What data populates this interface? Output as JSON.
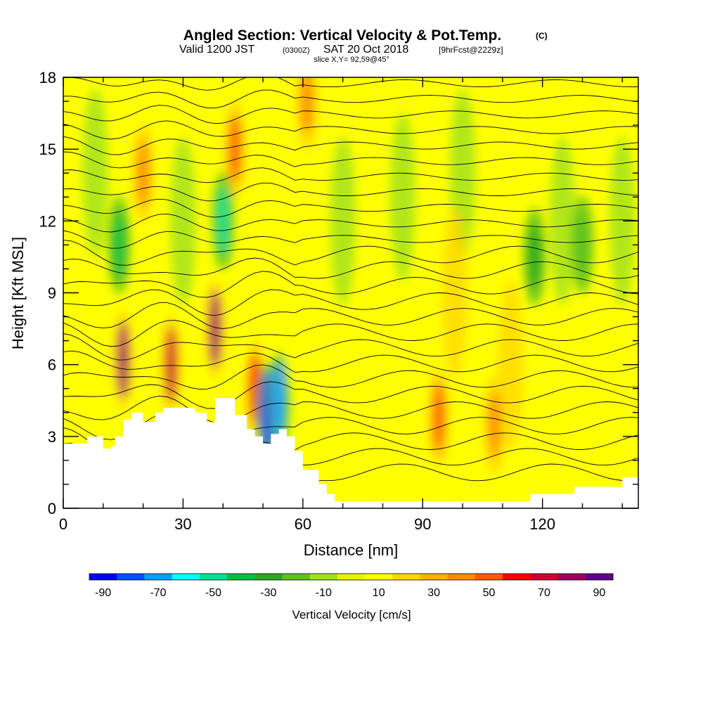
{
  "header": {
    "title_main": "Angled Section: Vertical Velocity & Pot.Temp.",
    "title_mark": "(C)",
    "sub_valid": "Valid 1200 JST",
    "sub_utc": "(0300Z)",
    "sub_date": "SAT 20 Oct 2018",
    "sub_fcst": "[9hrFcst@2229z]",
    "slice": "slice X,Y= 92,59@45°"
  },
  "colors": {
    "palette": [
      "#0000ff",
      "#0050ff",
      "#00a0ff",
      "#00ffff",
      "#00e090",
      "#00c040",
      "#2aa81c",
      "#5fc21c",
      "#9ee020",
      "#e6f500",
      "#ffff00",
      "#ffd700",
      "#ffb000",
      "#ff8c00",
      "#ff5a00",
      "#ff0000",
      "#d00030",
      "#a00060",
      "#600090"
    ],
    "terrain": "#ffffff",
    "contour": "#000000"
  },
  "chart_data": {
    "type": "heatmap",
    "title": "Angled Section: Vertical Velocity & Pot.Temp.",
    "xlabel": "Distance [nm]",
    "ylabel": "Height [Kft MSL]",
    "xlim": [
      0,
      144
    ],
    "ylim": [
      0,
      18
    ],
    "xticks": [
      "0",
      "30",
      "60",
      "90",
      "120"
    ],
    "yticks": [
      "0",
      "3",
      "6",
      "9",
      "12",
      "15",
      "18"
    ],
    "colorbar": {
      "label": "Vertical Velocity [cm/s]",
      "boundaries": [
        -95,
        -85,
        -75,
        -65,
        -55,
        -45,
        -35,
        -25,
        -15,
        -5,
        5,
        15,
        25,
        35,
        45,
        55,
        65,
        75,
        85,
        95
      ],
      "tick_labels": [
        "-90",
        "-70",
        "-50",
        "-30",
        "-10",
        "10",
        "30",
        "50",
        "70",
        "90"
      ]
    },
    "terrain_profile": {
      "x": [
        0,
        3,
        6,
        8,
        10,
        12,
        13,
        15,
        17,
        20,
        23,
        25,
        30,
        33,
        36,
        38,
        41,
        43,
        46,
        48,
        50,
        52,
        54,
        56,
        58,
        60,
        62,
        64,
        66,
        68,
        70,
        74,
        78,
        82,
        86,
        90,
        94,
        98,
        102,
        106,
        110,
        114,
        117,
        121,
        125,
        128,
        132,
        137,
        140,
        144
      ],
      "height": [
        2.7,
        2.7,
        3.0,
        3.0,
        2.5,
        2.6,
        3.0,
        3.7,
        4.0,
        3.6,
        4.0,
        4.2,
        4.2,
        4.0,
        3.6,
        4.6,
        4.6,
        3.9,
        3.3,
        3.0,
        2.7,
        3.1,
        3.3,
        3.0,
        2.4,
        1.6,
        1.6,
        1.0,
        0.6,
        0.3,
        0.3,
        0.3,
        0.3,
        0.3,
        0.3,
        0.3,
        0.3,
        0.3,
        0.3,
        0.3,
        0.3,
        0.3,
        0.6,
        0.6,
        0.6,
        0.9,
        0.9,
        0.9,
        1.3,
        1.3
      ]
    },
    "updrafts": [
      {
        "x": 15,
        "z": 6.2,
        "cm_s": 75
      },
      {
        "x": 27,
        "z": 6.0,
        "cm_s": 70
      },
      {
        "x": 38,
        "z": 7.5,
        "cm_s": 75
      },
      {
        "x": 48,
        "z": 5.0,
        "cm_s": 55
      },
      {
        "x": 94,
        "z": 3.8,
        "cm_s": 50
      },
      {
        "x": 108,
        "z": 3.5,
        "cm_s": 40
      },
      {
        "x": 20,
        "z": 14.0,
        "cm_s": 40
      },
      {
        "x": 43,
        "z": 15.0,
        "cm_s": 45
      },
      {
        "x": 61,
        "z": 17.0,
        "cm_s": 35
      }
    ],
    "downdrafts": [
      {
        "x": 14,
        "z": 11.0,
        "cm_s": -45
      },
      {
        "x": 40,
        "z": 12.0,
        "cm_s": -50
      },
      {
        "x": 51,
        "z": 4.0,
        "cm_s": -90
      },
      {
        "x": 54,
        "z": 4.5,
        "cm_s": -75
      },
      {
        "x": 118,
        "z": 10.5,
        "cm_s": -30
      },
      {
        "x": 130,
        "z": 11.0,
        "cm_s": -25
      }
    ]
  }
}
